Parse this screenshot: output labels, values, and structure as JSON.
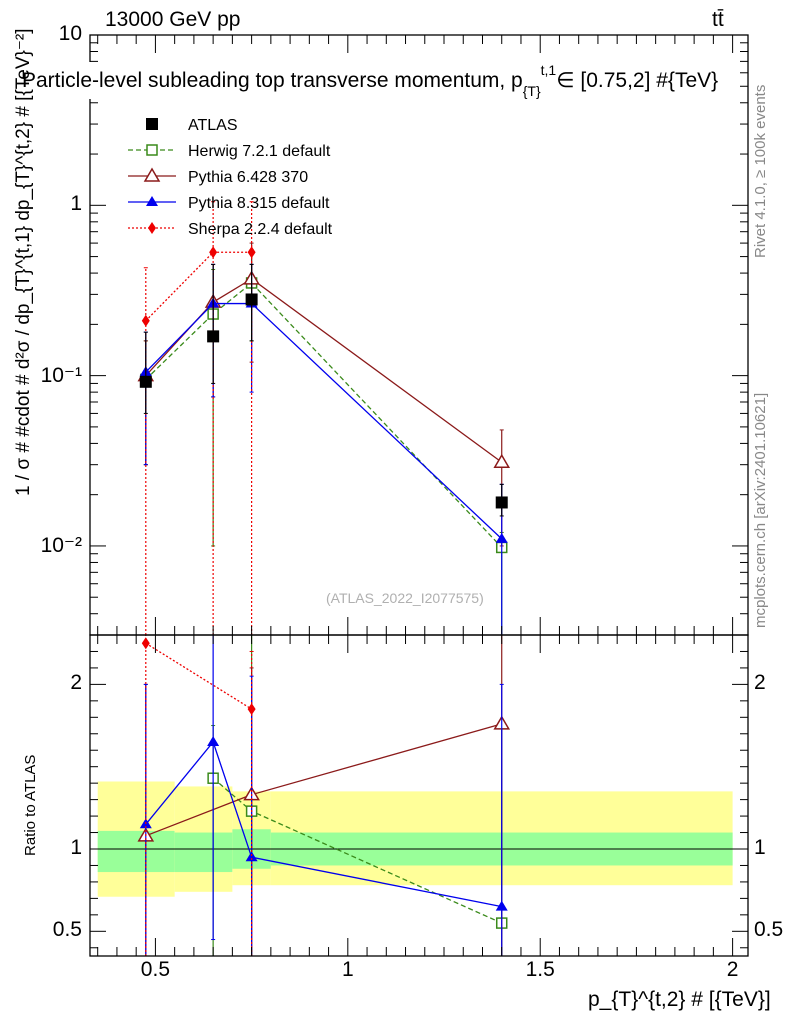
{
  "header": {
    "energy": "13000 GeV pp",
    "process": "tt̄"
  },
  "side_labels": {
    "rivet": "Rivet 4.1.0, ≥ 100k events",
    "mcplots": "mcplots.cern.ch [arXiv:2401.10621]"
  },
  "watermark": "(ATLAS_2022_I2077575)",
  "colors": {
    "atlas": "#000000",
    "herwig": "#3a8a1a",
    "pythia6": "#8b1a1a",
    "pythia8": "#0000ee",
    "sherpa": "#ee0000",
    "band_inner": "#99ff99",
    "band_outer": "#ffff99"
  },
  "chart_data": [
    {
      "type": "scatter",
      "panel": "main",
      "title": "Particle-level subleading top transverse momentum, p_{T}^{t,1} ∈ [0.75,2] #{TeV}",
      "title_text": "Particle-level subleading top transverse momentum, p",
      "title_sub": "{T}",
      "title_sup": "t,1",
      "title_tail": "∈ [0.75,2] #{TeV}",
      "xlabel": "p_{T}^{t,2} # [{TeV}]",
      "ylabel": "1 / σ # #cdot # d²σ / dp_{T}^{t,1} dp_{T}^{t,2} # [{TeV}⁻²]",
      "yscale": "log",
      "xlim": [
        0.33,
        2.04
      ],
      "ylim": [
        0.003,
        10
      ],
      "yticks": [
        {
          "v": 10,
          "label": "10"
        },
        {
          "v": 1,
          "label": "1"
        },
        {
          "v": 0.1,
          "label": "10⁻¹"
        },
        {
          "v": 0.01,
          "label": "10⁻²"
        }
      ],
      "legend_position": "top-left",
      "series": [
        {
          "name": "ATLAS",
          "key": "atlas",
          "marker": "square",
          "line": "none",
          "x": [
            0.475,
            0.65,
            0.75,
            1.4
          ],
          "xerr_lo": [
            0.475,
            0.65,
            0.75,
            1.4
          ],
          "y": [
            0.092,
            0.17,
            0.28,
            0.018
          ],
          "yerr_lo": [
            0.06,
            0.09,
            0.16,
            0.015
          ],
          "yerr_hi": [
            0.18,
            0.45,
            0.45,
            0.023
          ]
        },
        {
          "name": "Herwig 7.2.1 default",
          "key": "herwig",
          "marker": "open-square",
          "line": "dashed",
          "x": [
            0.475,
            0.65,
            0.75,
            1.4
          ],
          "y": [
            0.095,
            0.23,
            0.35,
            0.0098
          ],
          "yerr_lo": [
            0.03,
            0.01,
            0.16,
            0.003
          ],
          "yerr_hi": [
            0.16,
            0.42,
            0.55,
            0.012
          ]
        },
        {
          "name": "Pythia 6.428 370",
          "key": "pythia6",
          "marker": "open-triangle",
          "line": "solid",
          "x": [
            0.475,
            0.65,
            0.75,
            1.4
          ],
          "y": [
            0.1,
            0.27,
            0.37,
            0.031
          ],
          "yerr_lo": [
            0.03,
            0.075,
            0.12,
            0.01
          ],
          "yerr_hi": [
            0.16,
            0.45,
            0.6,
            0.048
          ]
        },
        {
          "name": "Pythia 8.315 default",
          "key": "pythia8",
          "marker": "triangle",
          "line": "solid",
          "x": [
            0.475,
            0.65,
            0.75,
            1.4
          ],
          "y": [
            0.105,
            0.265,
            0.265,
            0.011
          ],
          "yerr_lo": [
            0.03,
            0.075,
            0.08,
            0.0003
          ],
          "yerr_hi": [
            0.18,
            0.45,
            0.45,
            0.023
          ]
        },
        {
          "name": "Sherpa 2.2.4 default",
          "key": "sherpa",
          "marker": "diamond",
          "line": "dotted",
          "x": [
            0.475,
            0.65,
            0.75
          ],
          "y": [
            0.21,
            0.53,
            0.53
          ],
          "yerr_lo": [
            0.0001,
            0.0001,
            0.0001
          ],
          "yerr_hi": [
            0.43,
            1.05,
            1.05
          ]
        }
      ]
    },
    {
      "type": "scatter",
      "panel": "ratio",
      "ylabel": "Ratio to ATLAS",
      "xlabel": "p_{T}^{t,2} # [{TeV}]",
      "xlim": [
        0.33,
        2.04
      ],
      "ylim": [
        0.35,
        2.3
      ],
      "xticks": [
        {
          "v": 0.5,
          "label": "0.5"
        },
        {
          "v": 1,
          "label": "1"
        },
        {
          "v": 1.5,
          "label": "1.5"
        },
        {
          "v": 2,
          "label": "2"
        }
      ],
      "yticks": [
        {
          "v": 0.5,
          "label": "0.5"
        },
        {
          "v": 1,
          "label": "1"
        },
        {
          "v": 2,
          "label": "2"
        }
      ],
      "uncertainty_bands": [
        {
          "x0": 0.35,
          "x1": 0.55,
          "inner": [
            0.86,
            1.11
          ],
          "outer": [
            0.71,
            1.41
          ]
        },
        {
          "x0": 0.55,
          "x1": 0.7,
          "inner": [
            0.86,
            1.1
          ],
          "outer": [
            0.74,
            1.38
          ]
        },
        {
          "x0": 0.7,
          "x1": 0.8,
          "inner": [
            0.88,
            1.12
          ],
          "outer": [
            0.78,
            1.35
          ]
        },
        {
          "x0": 0.8,
          "x1": 2.0,
          "inner": [
            0.9,
            1.1
          ],
          "outer": [
            0.78,
            1.35
          ]
        }
      ],
      "series": [
        {
          "name": "Herwig 7.2.1 default",
          "key": "herwig",
          "marker": "open-square",
          "line": "dashed",
          "x": [
            0.65,
            0.75,
            1.4
          ],
          "y": [
            1.43,
            1.23,
            0.55
          ],
          "yerr_lo": [
            0.2,
            0.2,
            0.2
          ],
          "yerr_hi": [
            1.75,
            2.3,
            1.75
          ]
        },
        {
          "name": "Pythia 6.428 370",
          "key": "pythia6",
          "marker": "open-triangle",
          "line": "solid",
          "x": [
            0.475,
            0.75,
            1.4
          ],
          "y": [
            1.08,
            1.33,
            1.76
          ],
          "yerr_lo": [
            0.2,
            0.2,
            0.2
          ],
          "yerr_hi": [
            2.0,
            2.1,
            2.3
          ]
        },
        {
          "name": "Pythia 8.315 default",
          "key": "pythia8",
          "marker": "triangle",
          "line": "solid",
          "x": [
            0.475,
            0.65,
            0.75,
            1.4
          ],
          "y": [
            1.15,
            1.65,
            0.95,
            0.65
          ],
          "yerr_lo": [
            0.2,
            0.45,
            0.2,
            0.2
          ],
          "yerr_hi": [
            2.0,
            2.3,
            2.05,
            2.0
          ]
        },
        {
          "name": "Sherpa 2.2.4 default",
          "key": "sherpa",
          "marker": "diamond",
          "line": "dotted",
          "x": [
            0.475,
            0.75
          ],
          "y": [
            2.25,
            1.85
          ],
          "yerr_lo": [
            0.2,
            0.2
          ],
          "yerr_hi": [
            2.3,
            2.2
          ]
        }
      ]
    }
  ]
}
